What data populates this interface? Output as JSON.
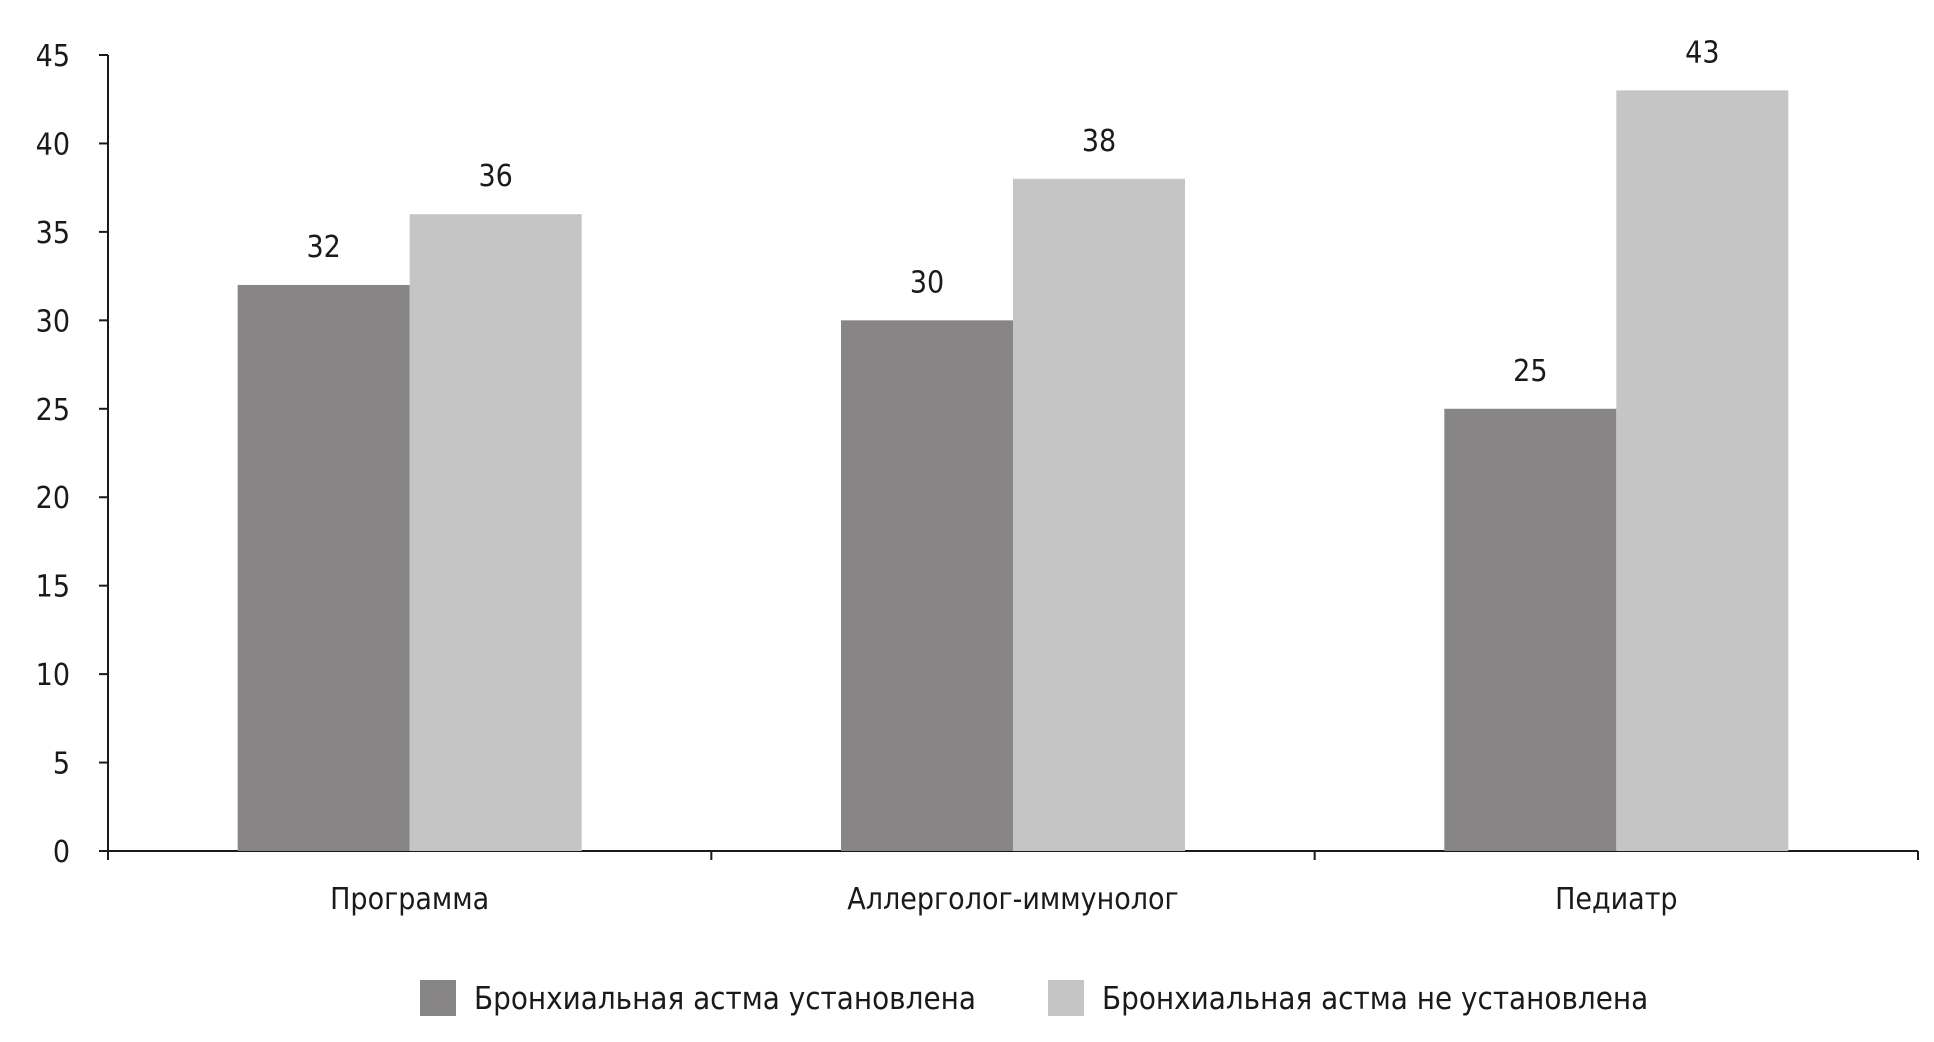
{
  "chart_data": {
    "type": "bar",
    "categories": [
      "Программа",
      "Аллерголог-иммунолог",
      "Педиатр"
    ],
    "series": [
      {
        "name": "Бронхиальная астма установлена",
        "values": [
          32,
          30,
          25
        ],
        "color": "#878586"
      },
      {
        "name": "Бронхиальная астма не установлена",
        "values": [
          36,
          38,
          43
        ],
        "color": "#c5c5c5"
      }
    ],
    "ylim": [
      0,
      45
    ],
    "yticks": [
      0,
      5,
      10,
      15,
      20,
      25,
      30,
      35,
      40,
      45
    ],
    "grid": false,
    "legend": "bottom",
    "axis_color": "#1a1a1a"
  }
}
